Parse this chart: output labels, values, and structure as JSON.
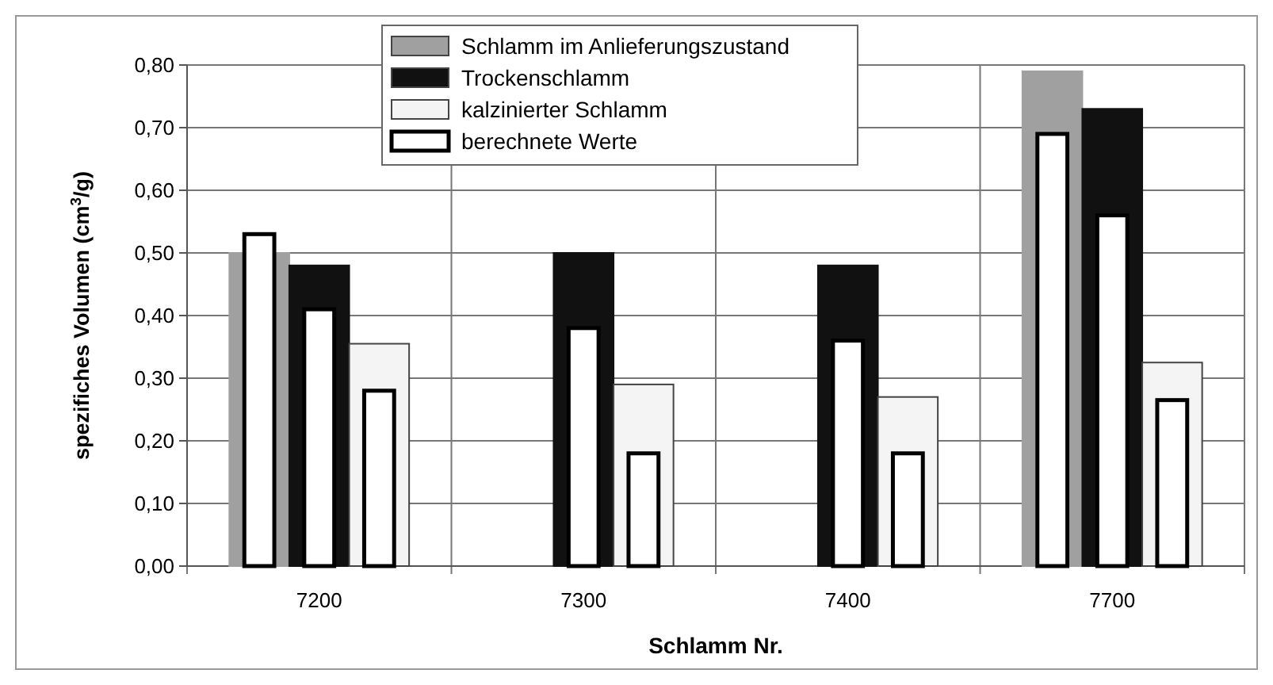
{
  "chart_data": {
    "type": "bar",
    "xlabel": "Schlamm Nr.",
    "ylabel": "spezifiches Volumen (cm$^{3}$/g)",
    "categories": [
      "7200",
      "7300",
      "7400",
      "7700"
    ],
    "series": [
      {
        "name": "Schlamm im Anlieferungszustand",
        "color": "#a0a0a0",
        "values": [
          0.5,
          null,
          null,
          0.79
        ]
      },
      {
        "name": "Trockenschlamm",
        "color": "#111111",
        "values": [
          0.48,
          0.5,
          0.48,
          0.73
        ]
      },
      {
        "name": "kalzinierter Schlamm",
        "color": "#f4f4f4",
        "values": [
          0.355,
          0.29,
          0.27,
          0.325
        ]
      },
      {
        "name": "berechnete Werte",
        "color": "#ffffff",
        "values": [
          0.53,
          null,
          null,
          0.69
        ]
      },
      {
        "color": "#ffffff",
        "values": [
          0.41,
          0.38,
          0.36,
          0.56
        ]
      },
      {
        "color": "#ffffff",
        "values": [
          0.28,
          0.18,
          0.18,
          0.265
        ]
      }
    ],
    "ylim": [
      0,
      0.8
    ],
    "yticks": [
      {
        "value": 0,
        "label": "0,00"
      },
      {
        "value": 0.1,
        "label": "0,10"
      },
      {
        "value": 0.2,
        "label": "0,20"
      },
      {
        "value": 0.3,
        "label": "0,30"
      },
      {
        "value": 0.4,
        "label": "0,40"
      },
      {
        "value": 0.5,
        "label": "0,50"
      },
      {
        "value": 0.6,
        "label": "0,60"
      },
      {
        "value": 0.7,
        "label": "0,70"
      },
      {
        "value": 0.8,
        "label": "0,80"
      }
    ],
    "grid": true,
    "legend": "top"
  }
}
